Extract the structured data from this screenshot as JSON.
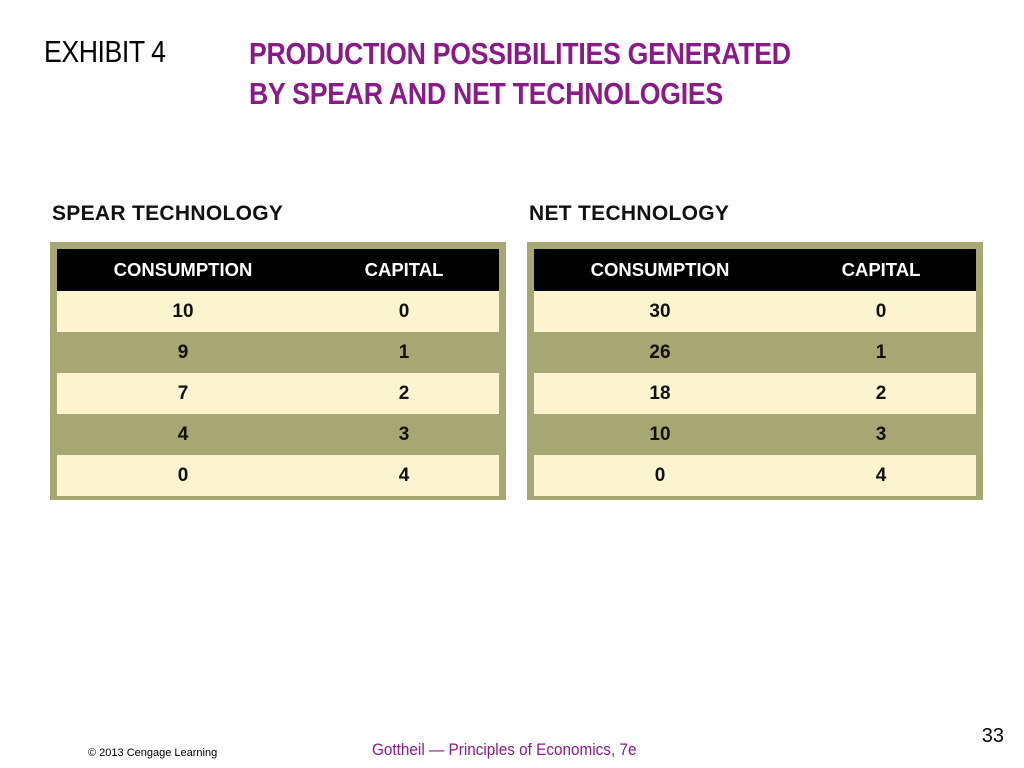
{
  "header": {
    "exhibit_label": "EXHIBIT 4",
    "title_line1": "PRODUCTION POSSIBILITIES GENERATED",
    "title_line2": "BY SPEAR AND NET TECHNOLOGIES"
  },
  "spear": {
    "label": "SPEAR TECHNOLOGY",
    "columns": [
      "CONSUMPTION",
      "CAPITAL"
    ],
    "rows": [
      [
        "10",
        "0"
      ],
      [
        "9",
        "1"
      ],
      [
        "7",
        "2"
      ],
      [
        "4",
        "3"
      ],
      [
        "0",
        "4"
      ]
    ]
  },
  "net": {
    "label": "NET TECHNOLOGY",
    "columns": [
      "CONSUMPTION",
      "CAPITAL"
    ],
    "rows": [
      [
        "30",
        "0"
      ],
      [
        "26",
        "1"
      ],
      [
        "18",
        "2"
      ],
      [
        "10",
        "3"
      ],
      [
        "0",
        "4"
      ]
    ]
  },
  "footer": {
    "page_number": "33",
    "copyright": "© 2013 Cengage Learning",
    "book": "Gottheil — Principles of Economics, 7e"
  },
  "colors": {
    "title": "#8b1a89",
    "table_frame": "#a7a774",
    "row_light": "#fcf3cf",
    "header_bg": "#000000"
  }
}
